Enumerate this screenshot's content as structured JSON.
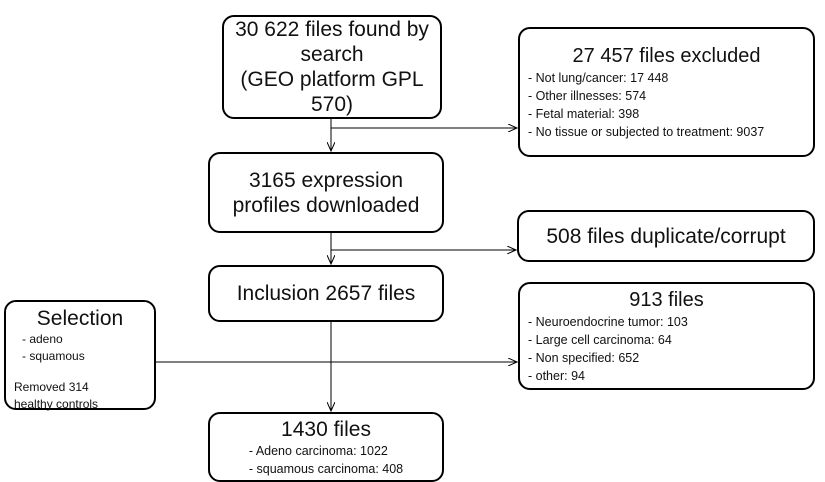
{
  "nodes": [
    {
      "lines": [
        "30 622 files found by",
        "search",
        "(GEO platform GPL 570)"
      ]
    },
    {
      "lines": [
        "27 457 files excluded"
      ],
      "items": [
        "- Not lung/cancer: 17 448",
        "- Other illnesses: 574",
        "- Fetal material: 398",
        "- No tissue or subjected to treatment: 9037"
      ]
    },
    {
      "lines": [
        "3165 expression",
        "profiles downloaded"
      ]
    },
    {
      "lines": [
        "508 files duplicate/corrupt"
      ]
    },
    {
      "lines": [
        "Inclusion 2657 files"
      ]
    },
    {
      "lines": [
        "913 files"
      ],
      "items": [
        "- Neuroendocrine tumor: 103",
        "- Large cell carcinoma: 64",
        "- Non specified: 652",
        "- other: 94"
      ]
    },
    {
      "lines": [
        "Selection"
      ],
      "items": [
        "- adeno",
        "- squamous"
      ],
      "note": [
        "Removed 314",
        "healthy controls"
      ]
    },
    {
      "lines": [
        "1430 files"
      ],
      "items": [
        "- Adeno carcinoma: 1022",
        "- squamous carcinoma: 408"
      ]
    }
  ]
}
